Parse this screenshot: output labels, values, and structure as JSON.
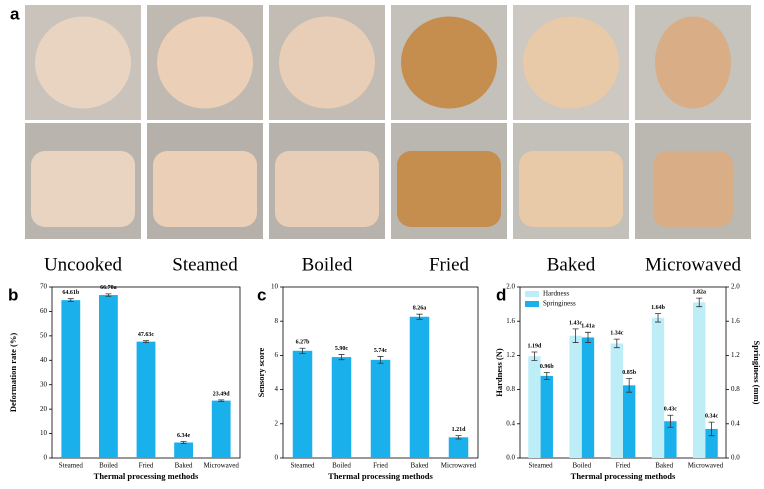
{
  "panel_a": {
    "label": "a",
    "captions": [
      "Uncooked",
      "Steamed",
      "Boiled",
      "Fried",
      "Baked",
      "Microwaved"
    ]
  },
  "chart_data": [
    {
      "type": "bar",
      "label": "b",
      "xlabel": "Thermal processing methods",
      "ylabel": "Deformation rate (%)",
      "categories": [
        "Steamed",
        "Boiled",
        "Fried",
        "Baked",
        "Microwaved"
      ],
      "values": [
        64.61,
        66.7,
        47.63,
        6.34,
        23.49
      ],
      "errors": [
        0.6,
        0.5,
        0.4,
        0.4,
        0.3
      ],
      "value_labels": [
        "64.61b",
        "66.70a",
        "47.63c",
        "6.34e",
        "23.49d"
      ],
      "color": "#1ab0ec",
      "ylim": [
        0,
        70
      ],
      "yticks": [
        0,
        10,
        20,
        30,
        40,
        50,
        60,
        70
      ]
    },
    {
      "type": "bar",
      "label": "c",
      "xlabel": "Thermal processing methods",
      "ylabel": "Sensory score",
      "categories": [
        "Steamed",
        "Boiled",
        "Fried",
        "Baked",
        "Microwaved"
      ],
      "values": [
        6.27,
        5.9,
        5.74,
        8.26,
        1.21
      ],
      "errors": [
        0.15,
        0.15,
        0.2,
        0.15,
        0.1
      ],
      "value_labels": [
        "6.27b",
        "5.90c",
        "5.74c",
        "8.26a",
        "1.21d"
      ],
      "color": "#1ab0ec",
      "ylim": [
        0,
        10
      ],
      "yticks": [
        0,
        2,
        4,
        6,
        8,
        10
      ]
    },
    {
      "type": "bar",
      "label": "d",
      "xlabel": "Thermal processing methods",
      "ylabel": "Hardness (N)",
      "y2label": "Springiness (mm)",
      "categories": [
        "Steamed",
        "Boiled",
        "Fried",
        "Baked",
        "Microwaved"
      ],
      "series": [
        {
          "name": "Hardness",
          "color": "#bdeef8",
          "values": [
            1.19,
            1.43,
            1.34,
            1.64,
            1.82
          ],
          "errors": [
            0.05,
            0.08,
            0.05,
            0.05,
            0.05
          ],
          "value_labels": [
            "1.19d",
            "1.43c",
            "1.34c",
            "1.64b",
            "1.82a"
          ]
        },
        {
          "name": "Springiness",
          "color": "#1ab0ec",
          "axis": "y2",
          "values": [
            0.96,
            1.41,
            0.85,
            0.43,
            0.34
          ],
          "errors": [
            0.04,
            0.06,
            0.08,
            0.07,
            0.08
          ],
          "value_labels": [
            "0.96b",
            "1.41a",
            "0.85b",
            "0.43c",
            "0.34c"
          ]
        }
      ],
      "legend": "upper left",
      "ylim": [
        0,
        2
      ],
      "yticks": [
        {
          "value": 0,
          "label": "0.0"
        },
        0.4,
        0.8,
        1.2,
        1.6,
        {
          "value": 2,
          "label": "2.0"
        }
      ],
      "y2lim": [
        0,
        2
      ],
      "y2ticks": [
        {
          "value": 0,
          "label": "0.0"
        },
        0.4,
        0.8,
        1.2,
        1.6,
        {
          "value": 2,
          "label": "2.0"
        }
      ]
    }
  ]
}
